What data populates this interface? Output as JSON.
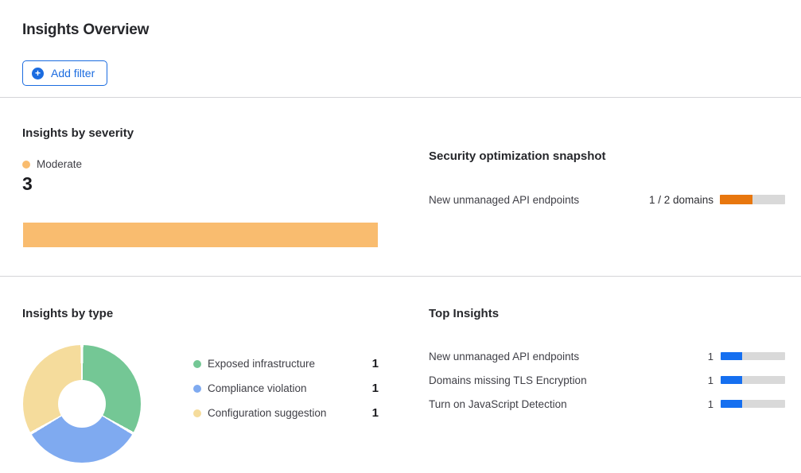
{
  "page": {
    "title": "Insights Overview"
  },
  "toolbar": {
    "add_filter_label": "Add filter"
  },
  "icons": {
    "plus_glyph": "+"
  },
  "colors": {
    "accent_blue": "#1b6ce0",
    "bar_blue": "#156ff0",
    "moderate_orange": "#f9bc6f",
    "snapshot_orange": "#e8770e",
    "track_gray": "#d9d9d9",
    "donut_green": "#74c795",
    "donut_blue": "#7faaf0",
    "donut_yellow": "#f5dc9c"
  },
  "severity": {
    "heading": "Insights by severity",
    "legend": [
      {
        "label": "Moderate",
        "value": "3",
        "color": "#f9bc6f",
        "fill_pct": 100
      }
    ]
  },
  "snapshot": {
    "heading": "Security optimization snapshot",
    "rows": [
      {
        "label": "New unmanaged API endpoints",
        "value_text": "1 / 2 domains",
        "fill_pct": 50,
        "fill_color": "#e8770e"
      }
    ]
  },
  "by_type": {
    "heading": "Insights by type",
    "legend": [
      {
        "label": "Exposed infrastructure",
        "count": "1",
        "color": "#74c795"
      },
      {
        "label": "Compliance violation",
        "count": "1",
        "color": "#7faaf0"
      },
      {
        "label": "Configuration suggestion",
        "count": "1",
        "color": "#f5dc9c"
      }
    ]
  },
  "top_insights": {
    "heading": "Top Insights",
    "rows": [
      {
        "label": "New unmanaged API endpoints",
        "count": "1",
        "fill_pct": 33,
        "fill_color": "#156ff0"
      },
      {
        "label": "Domains missing TLS Encryption",
        "count": "1",
        "fill_pct": 33,
        "fill_color": "#156ff0"
      },
      {
        "label": "Turn on JavaScript Detection",
        "count": "1",
        "fill_pct": 33,
        "fill_color": "#156ff0"
      }
    ]
  },
  "chart_data": [
    {
      "type": "bar",
      "title": "Insights by severity",
      "orientation": "horizontal",
      "stacked": true,
      "categories": [
        "Moderate"
      ],
      "values": [
        3
      ],
      "colors": [
        "#f9bc6f"
      ],
      "xlim": [
        0,
        3
      ],
      "grid": false,
      "legend_position": "top"
    },
    {
      "type": "bar",
      "title": "Security optimization snapshot",
      "orientation": "horizontal",
      "categories": [
        "New unmanaged API endpoints"
      ],
      "values": [
        1
      ],
      "totals": [
        2
      ],
      "value_labels": [
        "1 / 2 domains"
      ],
      "colors": [
        "#e8770e"
      ]
    },
    {
      "type": "pie",
      "title": "Insights by type",
      "donut": true,
      "categories": [
        "Exposed infrastructure",
        "Compliance violation",
        "Configuration suggestion"
      ],
      "values": [
        1,
        1,
        1
      ],
      "colors": [
        "#74c795",
        "#7faaf0",
        "#f5dc9c"
      ],
      "legend_position": "right",
      "start_angle_deg": 0,
      "direction": "clockwise"
    },
    {
      "type": "bar",
      "title": "Top Insights",
      "orientation": "horizontal",
      "categories": [
        "New unmanaged API endpoints",
        "Domains missing TLS Encryption",
        "Turn on JavaScript Detection"
      ],
      "values": [
        1,
        1,
        1
      ],
      "xlim": [
        0,
        3
      ],
      "colors": [
        "#156ff0"
      ]
    }
  ]
}
